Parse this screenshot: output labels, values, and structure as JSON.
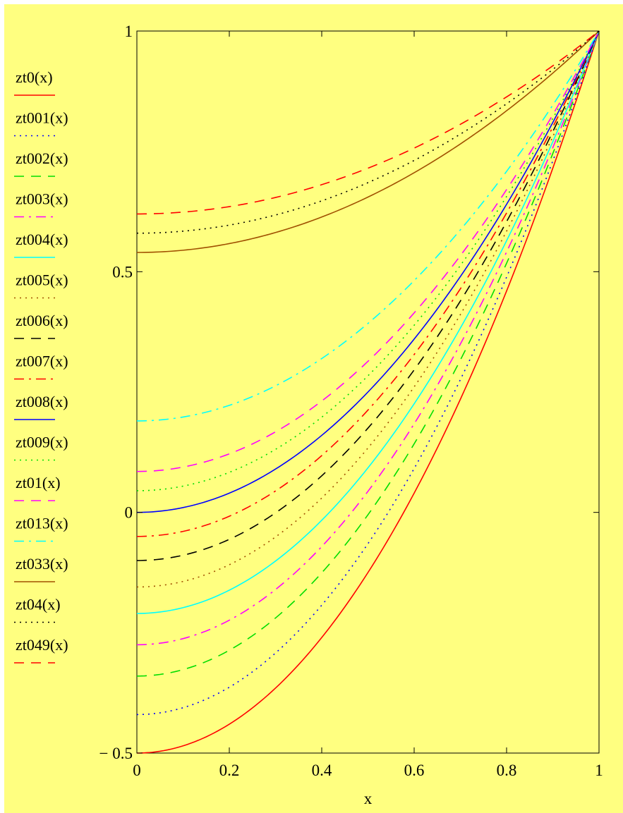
{
  "chart_data": {
    "type": "line",
    "xlabel": "x",
    "ylabel": "",
    "xlim": [
      0,
      1
    ],
    "ylim": [
      -0.5,
      1
    ],
    "x_ticks": [
      0,
      0.2,
      0.4,
      0.6,
      0.8,
      1
    ],
    "x_tick_labels": [
      "0",
      "0.2",
      "0.4",
      "0.6",
      "0.8",
      "1"
    ],
    "y_ticks": [
      1,
      0.5,
      0,
      -0.5
    ],
    "y_tick_labels": [
      "1",
      "0.5",
      "0",
      "− 0.5"
    ],
    "grid": false,
    "background": "#ffff80",
    "legend_position": "left",
    "series": [
      {
        "name": "zt0(x)",
        "y0": -0.5,
        "color": "#ff0000",
        "dash": "solid"
      },
      {
        "name": "zt001(x)",
        "y0": -0.42,
        "color": "#0000ff",
        "dash": "dot"
      },
      {
        "name": "zt002(x)",
        "y0": -0.34,
        "color": "#00dd00",
        "dash": "dash"
      },
      {
        "name": "zt003(x)",
        "y0": -0.275,
        "color": "#ff00ff",
        "dash": "dashdot"
      },
      {
        "name": "zt004(x)",
        "y0": -0.21,
        "color": "#00ffff",
        "dash": "solid"
      },
      {
        "name": "zt005(x)",
        "y0": -0.155,
        "color": "#a05000",
        "dash": "dot"
      },
      {
        "name": "zt006(x)",
        "y0": -0.1,
        "color": "#000000",
        "dash": "dash"
      },
      {
        "name": "zt007(x)",
        "y0": -0.05,
        "color": "#ff0000",
        "dash": "dashdot"
      },
      {
        "name": "zt008(x)",
        "y0": 0.0,
        "color": "#0000ff",
        "dash": "solid"
      },
      {
        "name": "zt009(x)",
        "y0": 0.045,
        "color": "#00dd00",
        "dash": "dot"
      },
      {
        "name": "zt01(x)",
        "y0": 0.085,
        "color": "#ff00ff",
        "dash": "dash"
      },
      {
        "name": "zt013(x)",
        "y0": 0.19,
        "color": "#00ffff",
        "dash": "dashdot"
      },
      {
        "name": "zt033(x)",
        "y0": 0.54,
        "color": "#a05000",
        "dash": "solid"
      },
      {
        "name": "zt04(x)",
        "y0": 0.58,
        "color": "#000000",
        "dash": "dot"
      },
      {
        "name": "zt049(x)",
        "y0": 0.62,
        "color": "#ff0000",
        "dash": "dash"
      }
    ]
  }
}
